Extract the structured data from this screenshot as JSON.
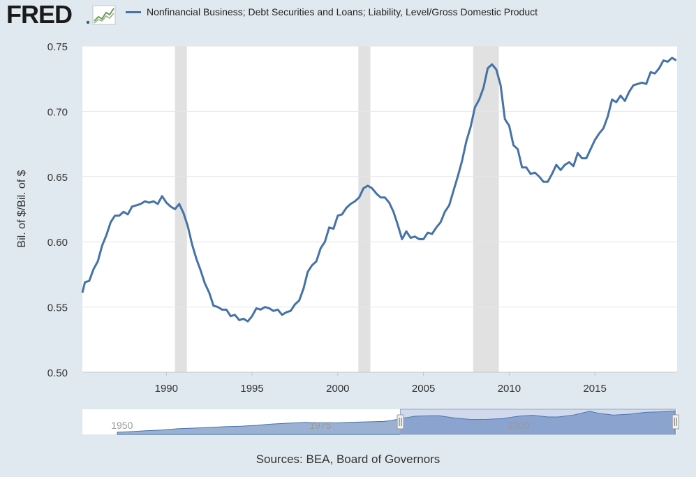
{
  "header": {
    "logo_text": "FRED",
    "legend_label": "Nonfinancial Business; Debt Securities and Loans; Liability, Level/Gross Domestic Product"
  },
  "chart_data": {
    "type": "line",
    "title": "Nonfinancial Business; Debt Securities and Loans; Liability, Level/Gross Domestic Product",
    "ylabel": "Bil. of $/Bil. of $",
    "xlabel": "",
    "xlim": [
      1985.1,
      2019.8
    ],
    "ylim": [
      0.5,
      0.75
    ],
    "x_ticks": [
      "1990",
      "1995",
      "2000",
      "2005",
      "2010",
      "2015"
    ],
    "y_ticks": [
      "0.50",
      "0.55",
      "0.60",
      "0.65",
      "0.70",
      "0.75"
    ],
    "grid": true,
    "recessions": [
      [
        1990.5,
        1991.2
      ],
      [
        2001.2,
        2001.9
      ],
      [
        2007.9,
        2009.4
      ]
    ],
    "series": [
      {
        "name": "Nonfinancial Business; Debt Securities and Loans; Liability, Level/Gross Domestic Product",
        "color": "#4572a7",
        "points": [
          [
            1985.0,
            0.561
          ],
          [
            1985.25,
            0.569
          ],
          [
            1985.5,
            0.57
          ],
          [
            1985.75,
            0.579
          ],
          [
            1986.0,
            0.585
          ],
          [
            1986.25,
            0.597
          ],
          [
            1986.5,
            0.605
          ],
          [
            1986.75,
            0.615
          ],
          [
            1987.0,
            0.62
          ],
          [
            1987.25,
            0.62
          ],
          [
            1987.5,
            0.623
          ],
          [
            1987.75,
            0.621
          ],
          [
            1988.0,
            0.627
          ],
          [
            1988.25,
            0.628
          ],
          [
            1988.5,
            0.629
          ],
          [
            1988.75,
            0.631
          ],
          [
            1989.0,
            0.63
          ],
          [
            1989.25,
            0.631
          ],
          [
            1989.5,
            0.629
          ],
          [
            1989.75,
            0.635
          ],
          [
            1990.0,
            0.63
          ],
          [
            1990.25,
            0.627
          ],
          [
            1990.5,
            0.625
          ],
          [
            1990.75,
            0.629
          ],
          [
            1991.0,
            0.622
          ],
          [
            1991.25,
            0.612
          ],
          [
            1991.5,
            0.598
          ],
          [
            1991.75,
            0.587
          ],
          [
            1992.0,
            0.578
          ],
          [
            1992.25,
            0.568
          ],
          [
            1992.5,
            0.561
          ],
          [
            1992.75,
            0.551
          ],
          [
            1993.0,
            0.55
          ],
          [
            1993.25,
            0.548
          ],
          [
            1993.5,
            0.548
          ],
          [
            1993.75,
            0.543
          ],
          [
            1994.0,
            0.544
          ],
          [
            1994.25,
            0.54
          ],
          [
            1994.5,
            0.541
          ],
          [
            1994.75,
            0.539
          ],
          [
            1995.0,
            0.543
          ],
          [
            1995.25,
            0.549
          ],
          [
            1995.5,
            0.548
          ],
          [
            1995.75,
            0.55
          ],
          [
            1996.0,
            0.549
          ],
          [
            1996.25,
            0.547
          ],
          [
            1996.5,
            0.548
          ],
          [
            1996.75,
            0.544
          ],
          [
            1997.0,
            0.546
          ],
          [
            1997.25,
            0.547
          ],
          [
            1997.5,
            0.552
          ],
          [
            1997.75,
            0.555
          ],
          [
            1998.0,
            0.564
          ],
          [
            1998.25,
            0.577
          ],
          [
            1998.5,
            0.582
          ],
          [
            1998.75,
            0.585
          ],
          [
            1999.0,
            0.595
          ],
          [
            1999.25,
            0.6
          ],
          [
            1999.5,
            0.611
          ],
          [
            1999.75,
            0.61
          ],
          [
            2000.0,
            0.62
          ],
          [
            2000.25,
            0.621
          ],
          [
            2000.5,
            0.626
          ],
          [
            2000.75,
            0.629
          ],
          [
            2001.0,
            0.631
          ],
          [
            2001.25,
            0.634
          ],
          [
            2001.5,
            0.641
          ],
          [
            2001.75,
            0.643
          ],
          [
            2002.0,
            0.641
          ],
          [
            2002.25,
            0.637
          ],
          [
            2002.5,
            0.634
          ],
          [
            2002.75,
            0.634
          ],
          [
            2003.0,
            0.63
          ],
          [
            2003.25,
            0.623
          ],
          [
            2003.5,
            0.613
          ],
          [
            2003.75,
            0.602
          ],
          [
            2004.0,
            0.608
          ],
          [
            2004.25,
            0.603
          ],
          [
            2004.5,
            0.604
          ],
          [
            2004.75,
            0.602
          ],
          [
            2005.0,
            0.602
          ],
          [
            2005.25,
            0.607
          ],
          [
            2005.5,
            0.606
          ],
          [
            2005.75,
            0.611
          ],
          [
            2006.0,
            0.615
          ],
          [
            2006.25,
            0.623
          ],
          [
            2006.5,
            0.628
          ],
          [
            2006.75,
            0.639
          ],
          [
            2007.0,
            0.65
          ],
          [
            2007.25,
            0.662
          ],
          [
            2007.5,
            0.677
          ],
          [
            2007.75,
            0.688
          ],
          [
            2008.0,
            0.703
          ],
          [
            2008.25,
            0.709
          ],
          [
            2008.5,
            0.718
          ],
          [
            2008.75,
            0.733
          ],
          [
            2009.0,
            0.736
          ],
          [
            2009.25,
            0.732
          ],
          [
            2009.5,
            0.72
          ],
          [
            2009.75,
            0.694
          ],
          [
            2010.0,
            0.689
          ],
          [
            2010.25,
            0.674
          ],
          [
            2010.5,
            0.671
          ],
          [
            2010.75,
            0.657
          ],
          [
            2011.0,
            0.657
          ],
          [
            2011.25,
            0.652
          ],
          [
            2011.5,
            0.653
          ],
          [
            2011.75,
            0.65
          ],
          [
            2012.0,
            0.646
          ],
          [
            2012.25,
            0.646
          ],
          [
            2012.5,
            0.652
          ],
          [
            2012.75,
            0.659
          ],
          [
            2013.0,
            0.655
          ],
          [
            2013.25,
            0.659
          ],
          [
            2013.5,
            0.661
          ],
          [
            2013.75,
            0.658
          ],
          [
            2014.0,
            0.668
          ],
          [
            2014.25,
            0.664
          ],
          [
            2014.5,
            0.664
          ],
          [
            2014.75,
            0.671
          ],
          [
            2015.0,
            0.678
          ],
          [
            2015.25,
            0.683
          ],
          [
            2015.5,
            0.687
          ],
          [
            2015.75,
            0.696
          ],
          [
            2016.0,
            0.709
          ],
          [
            2016.25,
            0.707
          ],
          [
            2016.5,
            0.712
          ],
          [
            2016.75,
            0.708
          ],
          [
            2017.0,
            0.715
          ],
          [
            2017.25,
            0.72
          ],
          [
            2017.5,
            0.721
          ],
          [
            2017.75,
            0.722
          ],
          [
            2018.0,
            0.721
          ],
          [
            2018.25,
            0.73
          ],
          [
            2018.5,
            0.729
          ],
          [
            2018.75,
            0.733
          ],
          [
            2019.0,
            0.739
          ],
          [
            2019.25,
            0.738
          ],
          [
            2019.5,
            0.741
          ],
          [
            2019.75,
            0.739
          ]
        ]
      }
    ],
    "navigator": {
      "range": [
        1945.0,
        2020.0
      ],
      "tick_labels": [
        "1950",
        "1975",
        "2000"
      ],
      "tick_values": [
        1950,
        1975,
        2000
      ],
      "selected_range": [
        1985.1,
        2019.8
      ],
      "series": [
        [
          1945.0,
          0.235
        ],
        [
          1947.0,
          0.245
        ],
        [
          1949.0,
          0.25
        ],
        [
          1951.0,
          0.262
        ],
        [
          1953.0,
          0.285
        ],
        [
          1955.0,
          0.3
        ],
        [
          1957.0,
          0.33
        ],
        [
          1959.0,
          0.345
        ],
        [
          1961.0,
          0.36
        ],
        [
          1963.0,
          0.38
        ],
        [
          1965.0,
          0.39
        ],
        [
          1967.0,
          0.41
        ],
        [
          1969.0,
          0.44
        ],
        [
          1971.0,
          0.46
        ],
        [
          1973.0,
          0.475
        ],
        [
          1975.0,
          0.47
        ],
        [
          1977.0,
          0.465
        ],
        [
          1979.0,
          0.48
        ],
        [
          1981.0,
          0.49
        ],
        [
          1983.0,
          0.5
        ],
        [
          1984.0,
          0.52
        ],
        [
          1985.0,
          0.561
        ],
        [
          1987.0,
          0.62
        ],
        [
          1989.0,
          0.63
        ],
        [
          1990.0,
          0.63
        ],
        [
          1992.0,
          0.578
        ],
        [
          1994.0,
          0.544
        ],
        [
          1996.0,
          0.549
        ],
        [
          1998.0,
          0.564
        ],
        [
          2000.0,
          0.62
        ],
        [
          2001.75,
          0.643
        ],
        [
          2003.75,
          0.602
        ],
        [
          2005.0,
          0.602
        ],
        [
          2007.0,
          0.65
        ],
        [
          2009.0,
          0.736
        ],
        [
          2010.0,
          0.689
        ],
        [
          2012.0,
          0.646
        ],
        [
          2014.0,
          0.668
        ],
        [
          2016.0,
          0.709
        ],
        [
          2018.0,
          0.721
        ],
        [
          2019.75,
          0.739
        ]
      ]
    }
  },
  "footer": {
    "sources": "Sources: BEA, Board of Governors"
  }
}
